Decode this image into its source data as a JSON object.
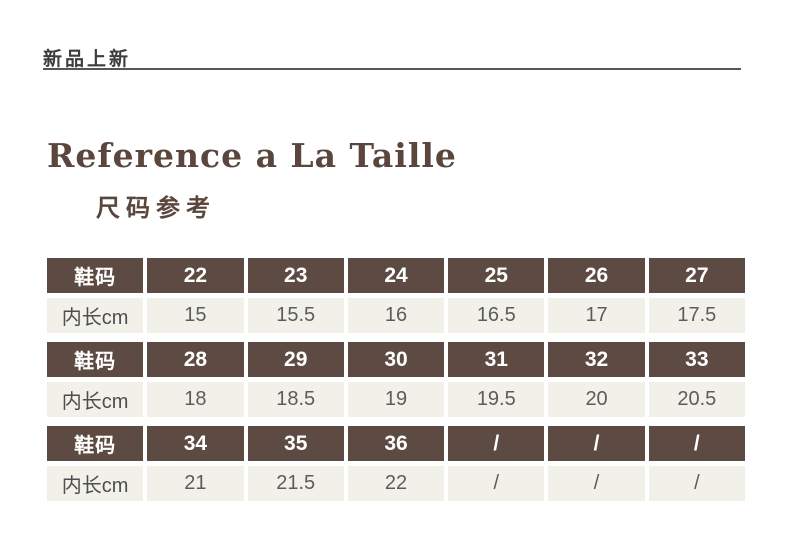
{
  "page": {
    "brand_label": "新品上新",
    "title": "Reference a La Taille",
    "subtitle": "尺码参考"
  },
  "colors": {
    "header_bg": "#5d4a42",
    "header_text": "#ffffff",
    "cell_bg": "#f1f0e9",
    "cell_text": "#5c5c5c",
    "accent_brown": "#5a463c",
    "rule": "#55565a"
  },
  "size_table": {
    "size_row_label": "鞋码",
    "length_row_label": "内长cm",
    "sections": [
      {
        "sizes": [
          "22",
          "23",
          "24",
          "25",
          "26",
          "27"
        ],
        "lengths": [
          "15",
          "15.5",
          "16",
          "16.5",
          "17",
          "17.5"
        ]
      },
      {
        "sizes": [
          "28",
          "29",
          "30",
          "31",
          "32",
          "33"
        ],
        "lengths": [
          "18",
          "18.5",
          "19",
          "19.5",
          "20",
          "20.5"
        ]
      },
      {
        "sizes": [
          "34",
          "35",
          "36",
          "/",
          "/",
          "/"
        ],
        "lengths": [
          "21",
          "21.5",
          "22",
          "/",
          "/",
          "/"
        ]
      }
    ]
  }
}
